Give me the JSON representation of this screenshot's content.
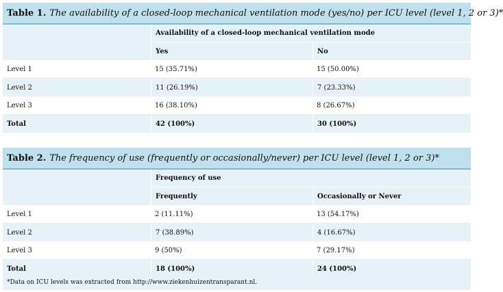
{
  "table1": {
    "label": "Table 1.",
    "title": "The availability of a closed-loop mechanical ventilation mode (yes/no) per ICU level (level 1, 2 or 3)*",
    "group_header": "Availability of a closed-loop mechanical ventilation mode",
    "columns": [
      "Yes",
      "No"
    ],
    "rows": [
      {
        "label": "Level 1",
        "c1": "15 (35.71%)",
        "c2": "15 (50.00%)"
      },
      {
        "label": "Level 2",
        "c1": "11 (26.19%)",
        "c2": "7 (23.33%)"
      },
      {
        "label": "Level 3",
        "c1": "16 (38.10%)",
        "c2": "8 (26.67%)"
      },
      {
        "label": "Total",
        "c1": "42 (100%)",
        "c2": "30 (100%)"
      }
    ]
  },
  "table2": {
    "label": "Table 2.",
    "title": "The frequency of use (frequently or occasionally/never) per ICU level (level 1, 2 or 3)*",
    "group_header": "Frequency of use",
    "columns": [
      "Frequently",
      "Occasionally or Never"
    ],
    "rows": [
      {
        "label": "Level 1",
        "c1": "2 (11.11%)",
        "c2": "13 (54.17%)"
      },
      {
        "label": "Level 2",
        "c1": "7 (38.89%)",
        "c2": "4 (16.67%)"
      },
      {
        "label": "Level 3",
        "c1": "9 (50%)",
        "c2": "7 (29.17%)"
      },
      {
        "label": "Total",
        "c1": "18 (100%)",
        "c2": "24 (100%)"
      }
    ]
  },
  "footnote": "*Data on ICU levels was extracted from http://www.ziekenhuizentransparant.nl."
}
